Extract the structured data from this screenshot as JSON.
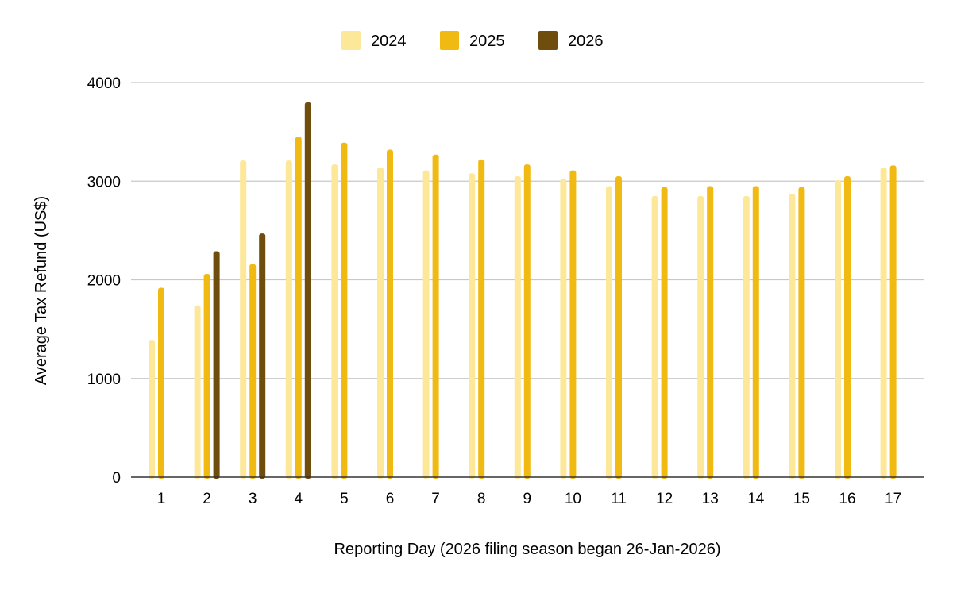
{
  "chart_data": {
    "type": "bar",
    "title": "",
    "xlabel": "Reporting Day (2026 filing season began 26-Jan-2026)",
    "ylabel": "Average Tax Refund (US$)",
    "ylim": [
      0,
      4000
    ],
    "yticks": [
      "0",
      "1000",
      "2000",
      "3000",
      "4000"
    ],
    "grid": true,
    "legend_position": "top-center",
    "categories": [
      "1",
      "2",
      "3",
      "4",
      "5",
      "6",
      "7",
      "8",
      "9",
      "10",
      "11",
      "12",
      "13",
      "14",
      "15",
      "16",
      "17"
    ],
    "series": [
      {
        "name": "2024",
        "color": "#FDE89A",
        "values": [
          1390,
          1740,
          3210,
          3210,
          3170,
          3140,
          3110,
          3080,
          3050,
          3020,
          2950,
          2850,
          2850,
          2850,
          2870,
          3010,
          3140
        ]
      },
      {
        "name": "2025",
        "color": "#F0BA12",
        "values": [
          1920,
          2060,
          2160,
          3450,
          3390,
          3320,
          3270,
          3220,
          3170,
          3110,
          3050,
          2940,
          2950,
          2950,
          2940,
          3050,
          3160
        ]
      },
      {
        "name": "2026",
        "color": "#6F4D0C",
        "values": [
          null,
          2290,
          2470,
          3800,
          null,
          null,
          null,
          null,
          null,
          null,
          null,
          null,
          null,
          null,
          null,
          null,
          null
        ]
      }
    ]
  }
}
